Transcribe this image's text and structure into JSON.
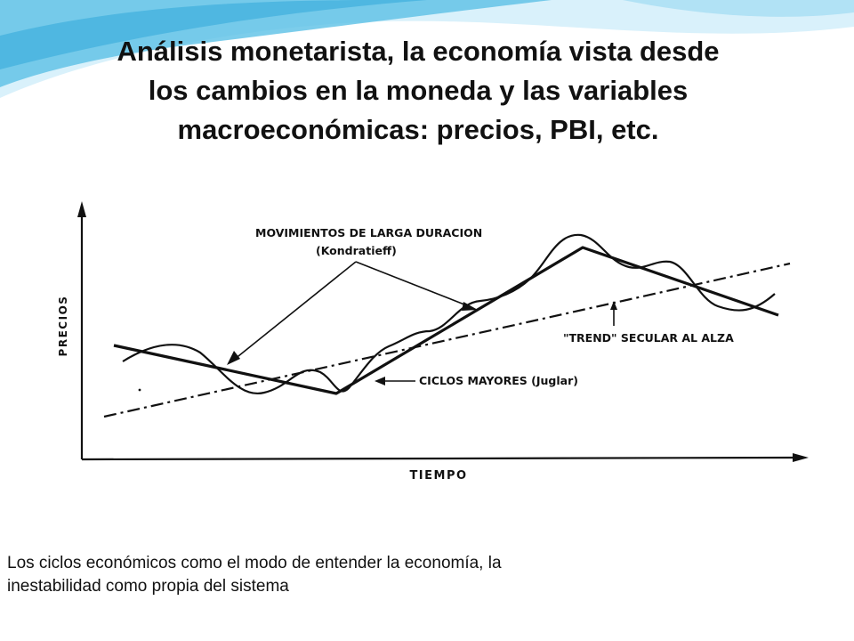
{
  "slide": {
    "title_lines": [
      "Análisis monetarista, la economía vista desde",
      "los cambios en la moneda y las variables",
      "macroeconómicas: precios, PBI, etc."
    ],
    "caption_lines": [
      "Los ciclos económicos como el modo de entender la economía, la",
      "inestabilidad como propia del sistema"
    ]
  },
  "figure": {
    "y_axis_label": "PRECIOS",
    "x_axis_label": "TIEMPO",
    "kondratieff_label_line1": "MOVIMIENTOS DE LARGA DURACION",
    "kondratieff_label_line2": "(Kondratieff)",
    "trend_label": "\"TREND\" SECULAR AL ALZA",
    "juglar_label": "CICLOS MAYORES (Juglar)"
  },
  "theme": {
    "background_accent": "#5bc0e6",
    "ink": "#111111"
  }
}
